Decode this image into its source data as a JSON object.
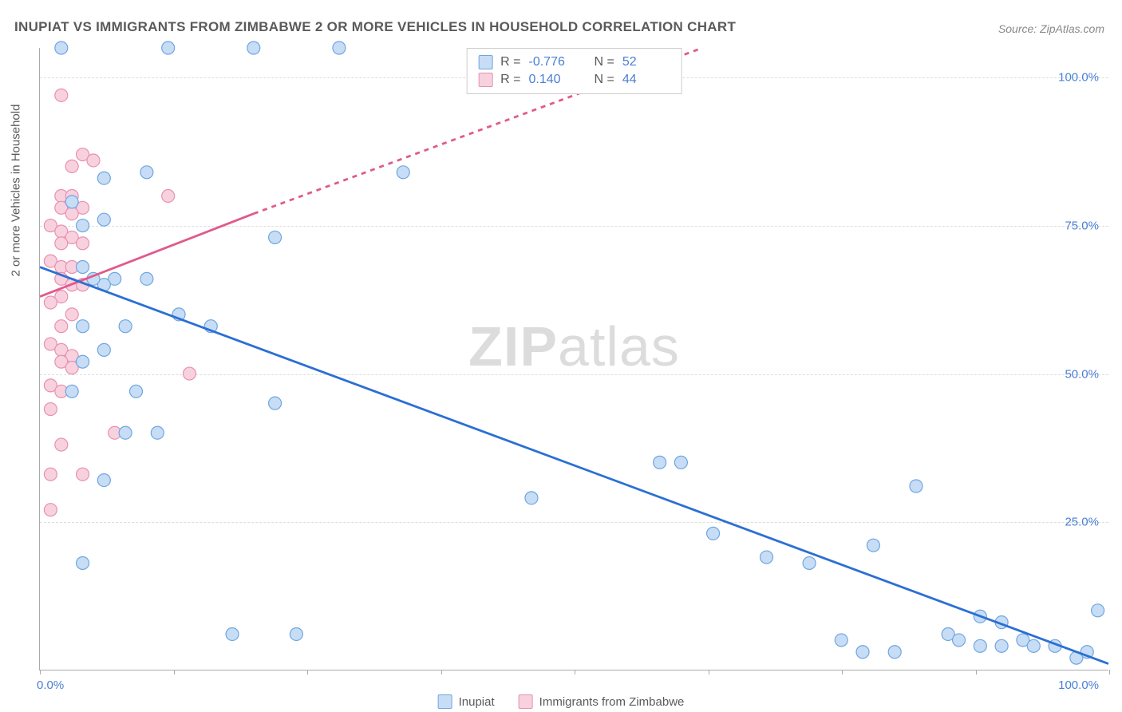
{
  "title": "INUPIAT VS IMMIGRANTS FROM ZIMBABWE 2 OR MORE VEHICLES IN HOUSEHOLD CORRELATION CHART",
  "source": "Source: ZipAtlas.com",
  "y_axis_label": "2 or more Vehicles in Household",
  "watermark_bold": "ZIP",
  "watermark_rest": "atlas",
  "chart": {
    "type": "scatter-correlation",
    "xlim": [
      0,
      100
    ],
    "ylim": [
      0,
      105
    ],
    "y_ticks": [
      25,
      50,
      75,
      100
    ],
    "y_tick_labels": [
      "25.0%",
      "50.0%",
      "75.0%",
      "100.0%"
    ],
    "x_tick_positions": [
      0,
      12.5,
      25,
      37.5,
      50,
      62.5,
      75,
      87.5,
      100
    ],
    "x_tick_left": "0.0%",
    "x_tick_right": "100.0%",
    "grid_color": "#dddddd",
    "axis_color": "#aaaaaa",
    "background_color": "#ffffff",
    "marker_radius": 8,
    "marker_stroke_width": 1.2,
    "trend_line_width": 2.8,
    "y_tick_color": "#4a7fd4",
    "series": [
      {
        "name": "Inupiat",
        "fill": "#c7ddf5",
        "stroke": "#6fa5e0",
        "line_color": "#2b6fd4",
        "r_value": "-0.776",
        "n_value": "52",
        "trend": {
          "x1": 0,
          "y1": 68,
          "x2": 100,
          "y2": 1
        },
        "points": [
          [
            12,
            105
          ],
          [
            20,
            105
          ],
          [
            28,
            105
          ],
          [
            2,
            105
          ],
          [
            6,
            83
          ],
          [
            10,
            84
          ],
          [
            34,
            84
          ],
          [
            3,
            79
          ],
          [
            6,
            76
          ],
          [
            4,
            75
          ],
          [
            22,
            73
          ],
          [
            4,
            68
          ],
          [
            7,
            66
          ],
          [
            10,
            66
          ],
          [
            6,
            65
          ],
          [
            5,
            66
          ],
          [
            13,
            60
          ],
          [
            16,
            58
          ],
          [
            8,
            58
          ],
          [
            4,
            58
          ],
          [
            4,
            52
          ],
          [
            6,
            54
          ],
          [
            9,
            47
          ],
          [
            3,
            47
          ],
          [
            22,
            45
          ],
          [
            8,
            40
          ],
          [
            11,
            40
          ],
          [
            6,
            32
          ],
          [
            46,
            29
          ],
          [
            58,
            35
          ],
          [
            60,
            35
          ],
          [
            63,
            23
          ],
          [
            4,
            18
          ],
          [
            68,
            19
          ],
          [
            72,
            18
          ],
          [
            78,
            21
          ],
          [
            18,
            6
          ],
          [
            24,
            6
          ],
          [
            82,
            31
          ],
          [
            88,
            9
          ],
          [
            90,
            8
          ],
          [
            75,
            5
          ],
          [
            77,
            3
          ],
          [
            80,
            3
          ],
          [
            85,
            6
          ],
          [
            86,
            5
          ],
          [
            88,
            4
          ],
          [
            90,
            4
          ],
          [
            92,
            5
          ],
          [
            93,
            4
          ],
          [
            95,
            4
          ],
          [
            97,
            2
          ],
          [
            98,
            3
          ],
          [
            99,
            10
          ]
        ]
      },
      {
        "name": "Immigrants from Zimbabwe",
        "fill": "#f7d2de",
        "stroke": "#e98fb1",
        "line_color": "#e05a8c",
        "r_value": "0.140",
        "n_value": "44",
        "trend_solid": {
          "x1": 0,
          "y1": 63,
          "x2": 20,
          "y2": 77
        },
        "trend_dashed": {
          "x1": 20,
          "y1": 77,
          "x2": 62,
          "y2": 105
        },
        "points": [
          [
            2,
            97
          ],
          [
            4,
            87
          ],
          [
            5,
            86
          ],
          [
            3,
            85
          ],
          [
            2,
            80
          ],
          [
            3,
            80
          ],
          [
            2,
            78
          ],
          [
            4,
            78
          ],
          [
            3,
            77
          ],
          [
            12,
            80
          ],
          [
            1,
            75
          ],
          [
            2,
            74
          ],
          [
            3,
            73
          ],
          [
            2,
            72
          ],
          [
            4,
            72
          ],
          [
            1,
            69
          ],
          [
            2,
            68
          ],
          [
            3,
            68
          ],
          [
            2,
            66
          ],
          [
            3,
            65
          ],
          [
            4,
            65
          ],
          [
            2,
            63
          ],
          [
            1,
            62
          ],
          [
            3,
            60
          ],
          [
            2,
            58
          ],
          [
            1,
            55
          ],
          [
            2,
            54
          ],
          [
            3,
            53
          ],
          [
            2,
            52
          ],
          [
            3,
            51
          ],
          [
            14,
            50
          ],
          [
            1,
            48
          ],
          [
            2,
            47
          ],
          [
            1,
            44
          ],
          [
            7,
            40
          ],
          [
            2,
            38
          ],
          [
            1,
            33
          ],
          [
            4,
            33
          ],
          [
            1,
            27
          ]
        ]
      }
    ]
  },
  "legend": {
    "series1_label": "Inupiat",
    "series2_label": "Immigrants from Zimbabwe"
  },
  "stats_box": {
    "r_label": "R =",
    "n_label": "N ="
  }
}
